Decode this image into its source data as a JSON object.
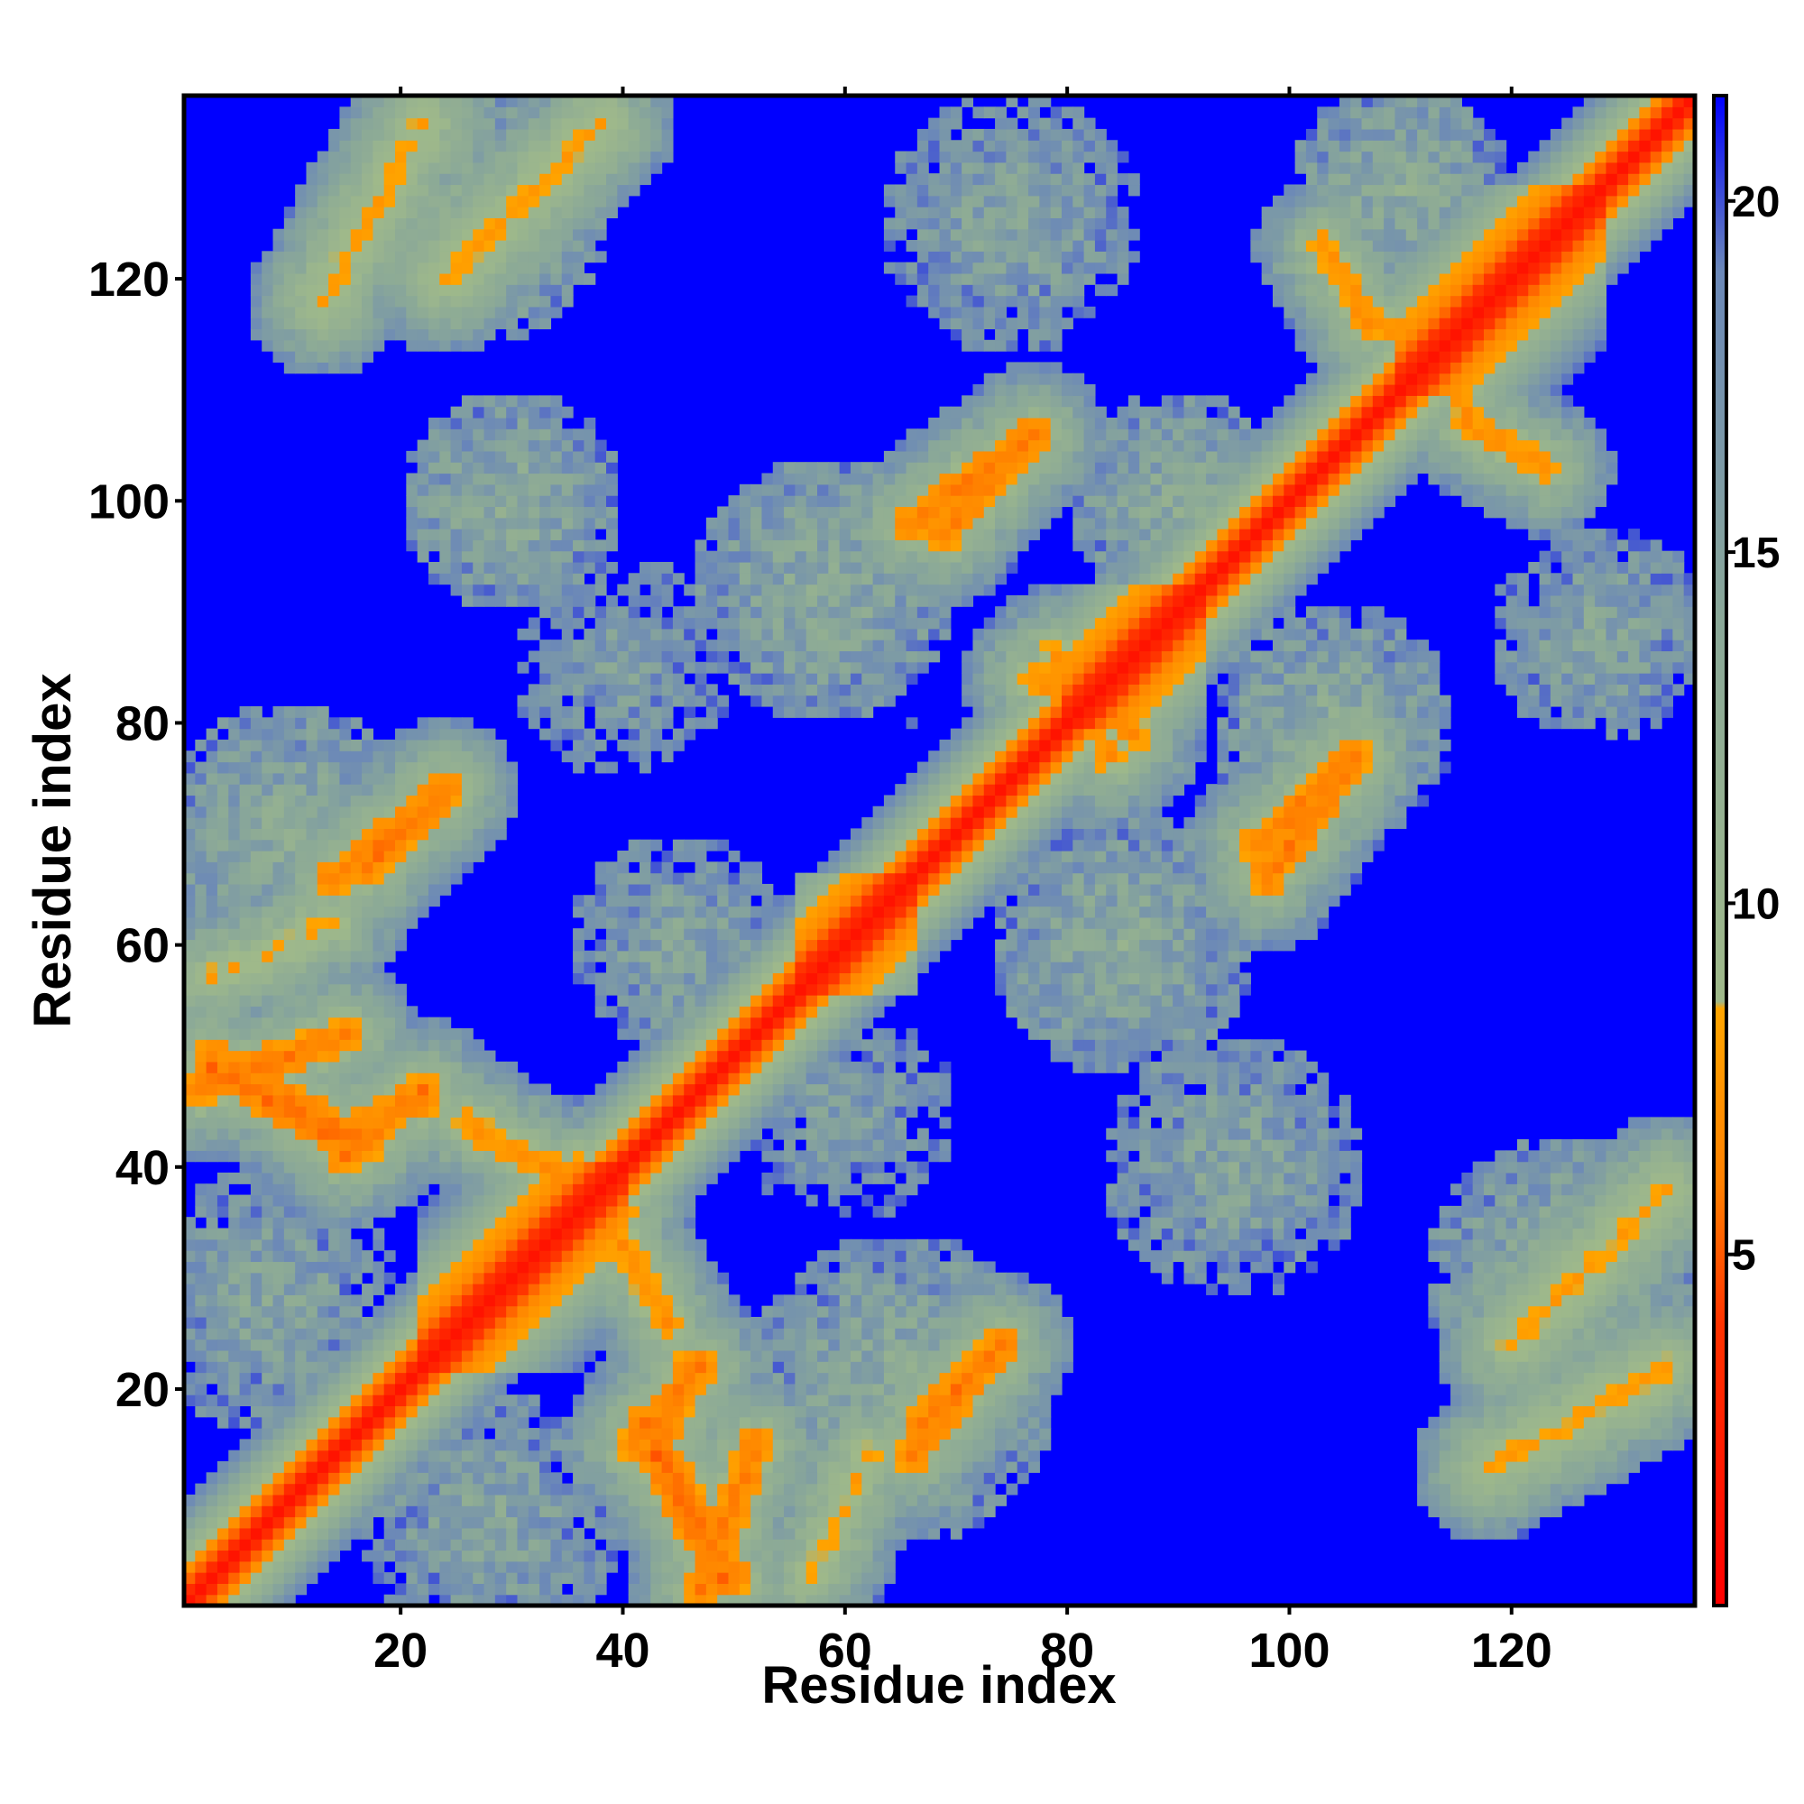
{
  "chart_data": {
    "type": "heatmap",
    "title": "",
    "xlabel": "Residue index",
    "ylabel": "Residue index",
    "n_residues": 136,
    "xlim": [
      0.5,
      136.5
    ],
    "ylim": [
      0.5,
      136.5
    ],
    "x_ticks": [
      20,
      40,
      60,
      80,
      100,
      120
    ],
    "y_ticks": [
      20,
      40,
      60,
      80,
      100,
      120
    ],
    "x_tick_labels": [
      "20",
      "40",
      "60",
      "80",
      "100",
      "120"
    ],
    "y_tick_labels": [
      "20",
      "40",
      "60",
      "80",
      "100",
      "120"
    ],
    "colorbar": {
      "range": [
        0,
        21.5
      ],
      "ticks": [
        5,
        10,
        15,
        20
      ],
      "tick_labels": [
        "5",
        "10",
        "15",
        "20"
      ],
      "colors": [
        {
          "value": 0,
          "color": "#ff0000"
        },
        {
          "value": 4,
          "color": "#ff3300"
        },
        {
          "value": 6,
          "color": "#ff8000"
        },
        {
          "value": 8.5,
          "color": "#ffa500"
        },
        {
          "value": 8.6,
          "color": "#9fb98a"
        },
        {
          "value": 14,
          "color": "#8aa898"
        },
        {
          "value": 19,
          "color": "#6b88b8"
        },
        {
          "value": 21.5,
          "color": "#0000ff"
        }
      ]
    },
    "cutoff": 20,
    "background_value": 21.5,
    "diagonal": {
      "core_value": 1.5,
      "slope_per_offset": 1.7
    },
    "helix_segments": [
      [
        22,
        40
      ],
      [
        56,
        66
      ],
      [
        80,
        92
      ],
      [
        110,
        128
      ]
    ],
    "contact_features": [
      {
        "a1": 2,
        "a2": 15,
        "b1": 47,
        "b2": 52,
        "value": 6,
        "width": 1.6
      },
      {
        "a1": 15,
        "a2": 22,
        "b1": 41,
        "b2": 47,
        "value": 6,
        "width": 1.5
      },
      {
        "a1": 3,
        "a2": 14,
        "b1": 49,
        "b2": 43,
        "value": 5.5,
        "width": 1.6
      },
      {
        "a1": 14,
        "a2": 22,
        "b1": 43,
        "b2": 46,
        "value": 6.5,
        "width": 1.5
      },
      {
        "a1": 17,
        "a2": 24,
        "b1": 67,
        "b2": 74,
        "value": 6,
        "width": 1.5
      },
      {
        "a1": 26,
        "a2": 40,
        "b1": 44,
        "b2": 36,
        "value": 7,
        "width": 1.4
      },
      {
        "a1": 50,
        "a2": 42,
        "b1": 3,
        "b2": 17,
        "value": 6,
        "width": 1.5
      },
      {
        "a1": 66,
        "a2": 74,
        "b1": 14,
        "b2": 24,
        "value": 6,
        "width": 1.5
      },
      {
        "a1": 69,
        "a2": 76,
        "b1": 97,
        "b2": 105,
        "value": 6,
        "width": 1.5
      },
      {
        "a1": 98,
        "a2": 106,
        "b1": 66,
        "b2": 77,
        "value": 6,
        "width": 1.5
      },
      {
        "a1": 107,
        "a2": 118,
        "b1": 116,
        "b2": 114,
        "value": 7,
        "width": 1.3
      },
      {
        "a1": 116,
        "a2": 123,
        "b1": 107,
        "b2": 103,
        "value": 7,
        "width": 1.3
      },
      {
        "a1": 77,
        "a2": 86,
        "b1": 84,
        "b2": 79,
        "value": 7,
        "width": 1.5
      },
      {
        "a1": 3,
        "a2": 14,
        "b1": 57,
        "b2": 62,
        "value": 8,
        "width": 1.4
      },
      {
        "a1": 13,
        "a2": 22,
        "b1": 118,
        "b2": 134,
        "value": 8,
        "width": 1.8
      },
      {
        "a1": 118,
        "a2": 134,
        "b1": 13,
        "b2": 22,
        "value": 8,
        "width": 1.8
      },
      {
        "a1": 120,
        "a2": 134,
        "b1": 24,
        "b2": 38,
        "value": 8,
        "width": 1.8
      },
      {
        "a1": 24,
        "a2": 38,
        "b1": 120,
        "b2": 134,
        "value": 8,
        "width": 1.8
      }
    ],
    "medium_regions": [
      {
        "x": 8,
        "y": 28,
        "r": 12,
        "value": 14
      },
      {
        "x": 28,
        "y": 8,
        "r": 12,
        "value": 14
      },
      {
        "x": 10,
        "y": 70,
        "r": 12,
        "value": 13
      },
      {
        "x": 30,
        "y": 100,
        "r": 10,
        "value": 13
      },
      {
        "x": 27,
        "y": 126,
        "r": 12,
        "value": 13
      },
      {
        "x": 58,
        "y": 92,
        "r": 12,
        "value": 13
      },
      {
        "x": 65,
        "y": 20,
        "r": 14,
        "value": 13
      },
      {
        "x": 85,
        "y": 60,
        "r": 12,
        "value": 13
      },
      {
        "x": 90,
        "y": 100,
        "r": 10,
        "value": 13
      },
      {
        "x": 104,
        "y": 80,
        "r": 11,
        "value": 13
      },
      {
        "x": 125,
        "y": 30,
        "r": 13,
        "value": 13
      },
      {
        "x": 128,
        "y": 88,
        "r": 10,
        "value": 14
      },
      {
        "x": 110,
        "y": 128,
        "r": 10,
        "value": 13
      },
      {
        "x": 75,
        "y": 125,
        "r": 12,
        "value": 14
      },
      {
        "x": 95,
        "y": 40,
        "r": 12,
        "value": 14
      },
      {
        "x": 45,
        "y": 60,
        "r": 10,
        "value": 14
      },
      {
        "x": 40,
        "y": 85,
        "r": 10,
        "value": 15
      },
      {
        "x": 60,
        "y": 45,
        "r": 10,
        "value": 15
      }
    ]
  }
}
